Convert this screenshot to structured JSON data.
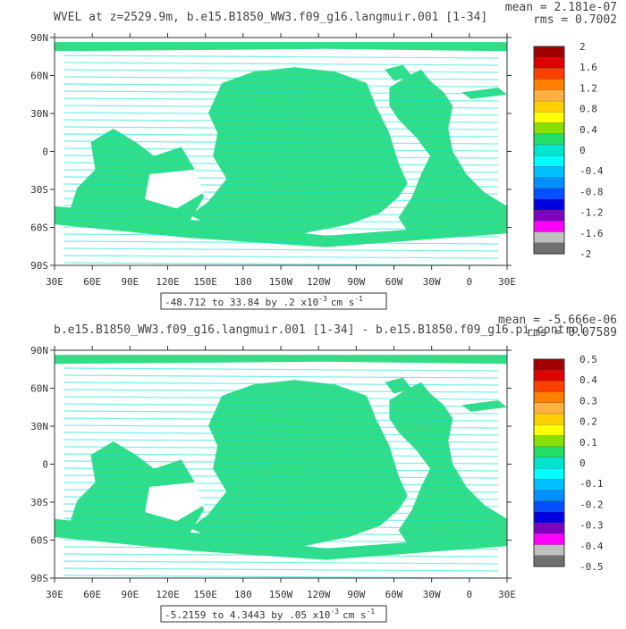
{
  "colors": {
    "frame": "#333333",
    "ocean_main": "#33dd88",
    "ocean_alt": "#00e5d0",
    "zero_band": "#22dd66",
    "land": "#ffffff"
  },
  "palette": [
    "#a00000",
    "#e00000",
    "#ff4000",
    "#ff8000",
    "#ffb040",
    "#ffd000",
    "#ffff00",
    "#88e000",
    "#22dd66",
    "#00e5d0",
    "#00ffff",
    "#00c0ff",
    "#0090ff",
    "#0050ff",
    "#0000e0",
    "#8000c0",
    "#ff00ff",
    "#c0c0c0",
    "#707070"
  ],
  "axes": {
    "lat_labels": [
      "90N",
      "60N",
      "30N",
      "0",
      "30S",
      "60S",
      "90S"
    ],
    "lon_labels": [
      "30E",
      "60E",
      "90E",
      "120E",
      "150E",
      "180",
      "150W",
      "120W",
      "90W",
      "60W",
      "30W",
      "0",
      "30E"
    ]
  },
  "panels": [
    {
      "title": "WVEL at z=2529.9m, b.e15.B1850_WW3.f09_g16.langmuir.001 [1-34]",
      "mean": "mean = 2.181e-07",
      "rms": "rms = 0.7002",
      "range": "-48.712 to 33.84 by .2 x10",
      "range_exp": "-3",
      "range_units": "cm s",
      "range_units_exp": "-1",
      "colorbar_labels": [
        "2",
        "1.6",
        "1.2",
        "0.8",
        "0.4",
        "0",
        "-0.4",
        "-0.8",
        "-1.2",
        "-1.6",
        "-2"
      ]
    },
    {
      "title": "b.e15.B1850_WW3.f09_g16.langmuir.001 [1-34] - b.e15.B1850.f09_g16.pi_control",
      "mean": "mean = -5.666e-06",
      "rms": "rms = 0.07589",
      "range": "-5.2159 to 4.3443 by .05 x10",
      "range_exp": "-3",
      "range_units": "cm s",
      "range_units_exp": "-1",
      "colorbar_labels": [
        "0.5",
        "0.4",
        "0.3",
        "0.2",
        "0.1",
        "0",
        "-0.1",
        "-0.2",
        "-0.3",
        "-0.4",
        "-0.5"
      ]
    }
  ]
}
